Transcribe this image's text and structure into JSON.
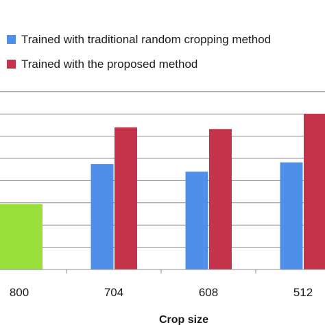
{
  "chart_data": {
    "type": "bar",
    "xlabel": "Crop size",
    "categories": [
      "800",
      "704",
      "608",
      "512"
    ],
    "series": [
      {
        "name": "Trained with traditional random cropping method",
        "color": "#4F8FEA",
        "values": [
          null,
          4.75,
          4.4,
          4.82
        ]
      },
      {
        "name": "Trained with the proposed method",
        "color": "#C5334A",
        "values": [
          null,
          6.4,
          6.32,
          7.0
        ]
      }
    ],
    "baseline": {
      "category": "800",
      "color": "#9AE03A",
      "value": 2.95
    },
    "ylim": [
      0,
      8
    ],
    "grid": true,
    "legend_position": "top"
  }
}
